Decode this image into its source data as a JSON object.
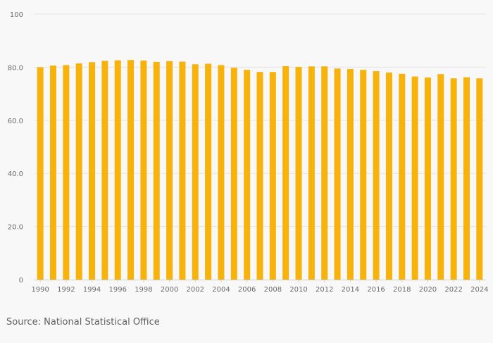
{
  "chart_data": {
    "type": "bar",
    "categories": [
      "1990",
      "1991",
      "1992",
      "1993",
      "1994",
      "1995",
      "1996",
      "1997",
      "1998",
      "1999",
      "2000",
      "2001",
      "2002",
      "2003",
      "2004",
      "2005",
      "2006",
      "2007",
      "2008",
      "2009",
      "2010",
      "2011",
      "2012",
      "2013",
      "2014",
      "2015",
      "2016",
      "2017",
      "2018",
      "2019",
      "2020",
      "2021",
      "2022",
      "2023",
      "2024"
    ],
    "x_tick_labels": [
      "1990",
      "1992",
      "1994",
      "1996",
      "1998",
      "2000",
      "2002",
      "2004",
      "2006",
      "2008",
      "2010",
      "2012",
      "2014",
      "2016",
      "2018",
      "2020",
      "2022",
      "2024"
    ],
    "values": [
      80.0,
      80.6,
      80.8,
      81.4,
      81.9,
      82.4,
      82.6,
      82.7,
      82.5,
      82.0,
      82.3,
      82.1,
      81.1,
      81.3,
      80.8,
      79.8,
      79.0,
      78.2,
      78.2,
      80.4,
      80.1,
      80.3,
      80.3,
      79.5,
      79.3,
      79.0,
      78.5,
      78.0,
      77.5,
      76.5,
      76.1,
      77.4,
      75.8,
      76.2,
      75.8
    ],
    "ylim": [
      0,
      100
    ],
    "y_ticks": [
      0,
      20,
      40,
      60,
      80,
      100
    ],
    "y_tick_labels": [
      "0",
      "20.0",
      "40.0",
      "60.0",
      "80.0",
      "100"
    ],
    "title": "",
    "xlabel": "",
    "ylabel": "",
    "grid": true,
    "legend": "none",
    "bar_color": "#f7b20b",
    "grid_color": "#e4e4e4",
    "tick_label_color": "#6b6b6b"
  },
  "source_text": "Source: National Statistical Office"
}
